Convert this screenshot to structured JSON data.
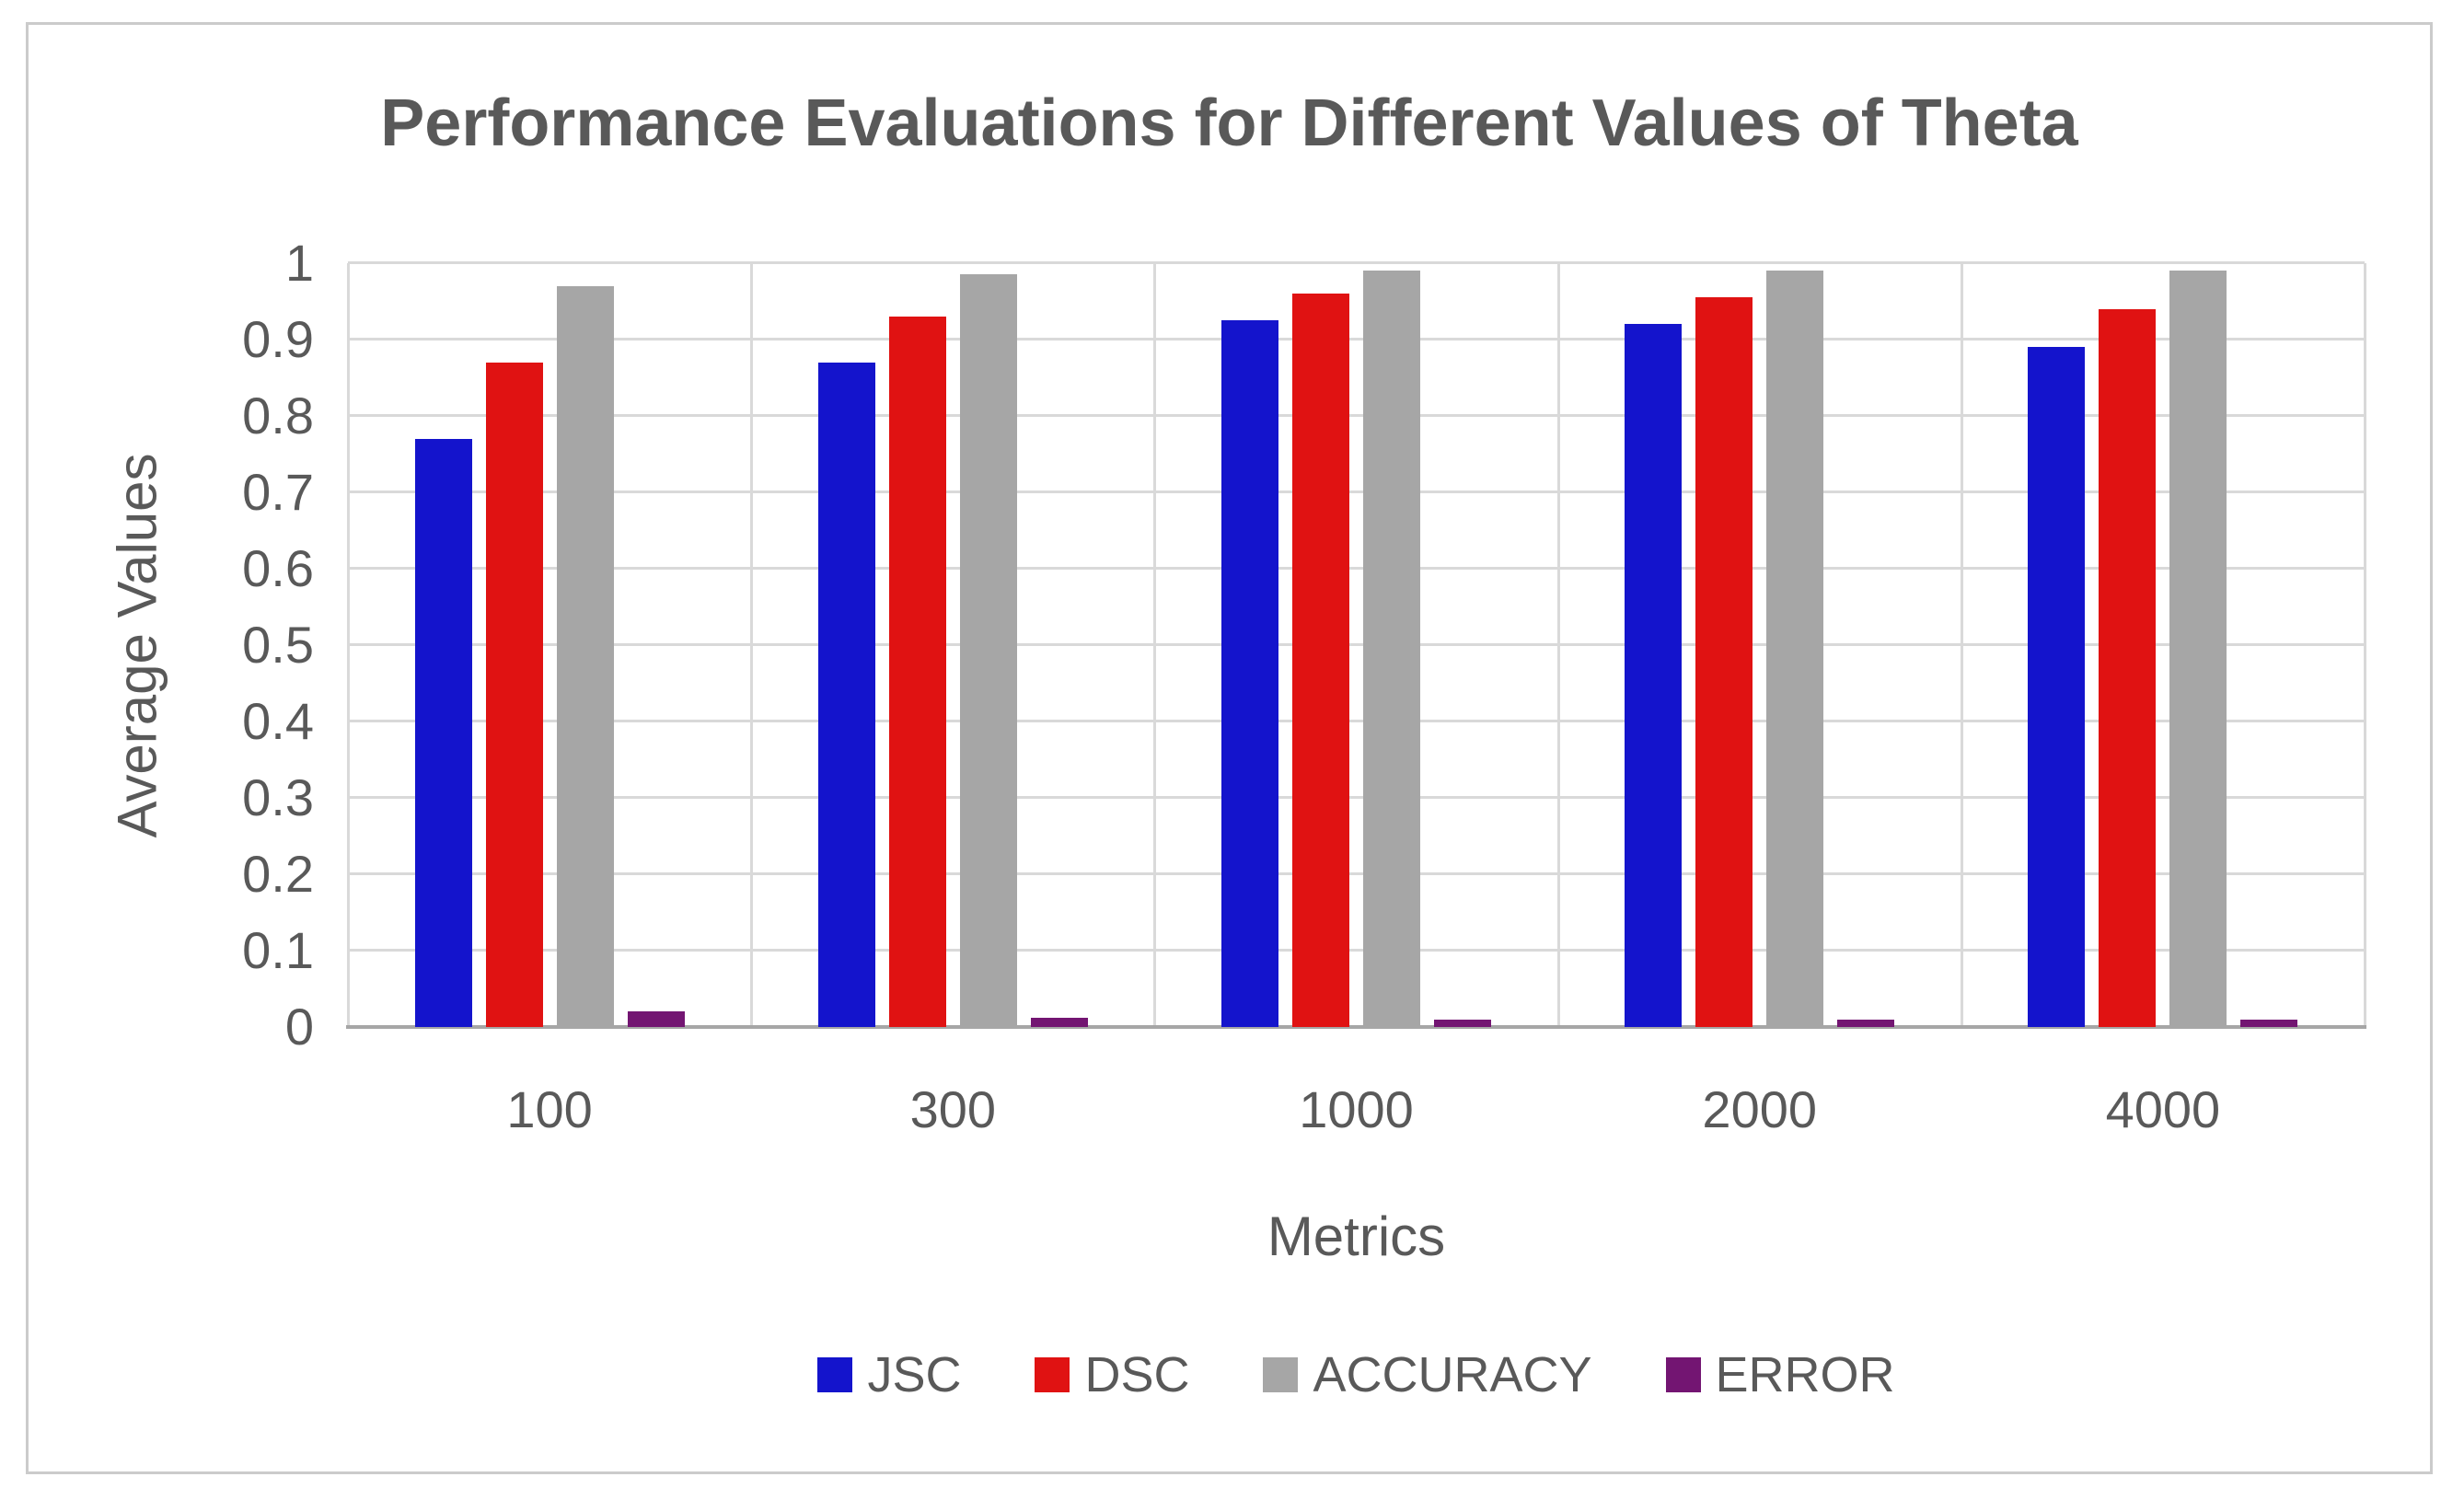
{
  "chart_data": {
    "type": "bar",
    "title": "Performance Evaluations for Different Values of Theta",
    "xlabel": "Metrics",
    "ylabel": "Average Values",
    "categories": [
      "100",
      "300",
      "1000",
      "2000",
      "4000"
    ],
    "series": [
      {
        "name": "JSC",
        "color": "#1414cc",
        "values": [
          0.77,
          0.87,
          0.925,
          0.92,
          0.89
        ]
      },
      {
        "name": "DSC",
        "color": "#e01212",
        "values": [
          0.87,
          0.93,
          0.96,
          0.955,
          0.94
        ]
      },
      {
        "name": "ACCURACY",
        "color": "#a6a6a6",
        "values": [
          0.97,
          0.985,
          0.99,
          0.99,
          0.99
        ]
      },
      {
        "name": "ERROR",
        "color": "#731572",
        "values": [
          0.02,
          0.012,
          0.01,
          0.01,
          0.01
        ]
      }
    ],
    "ylim": [
      0,
      1
    ],
    "yticks": [
      0,
      0.1,
      0.2,
      0.3,
      0.4,
      0.5,
      0.6,
      0.7,
      0.8,
      0.9,
      1
    ],
    "ytick_labels": [
      "0",
      "0.1",
      "0.2",
      "0.3",
      "0.4",
      "0.5",
      "0.6",
      "0.7",
      "0.8",
      "0.9",
      "1"
    ],
    "grid": true,
    "legend_position": "bottom",
    "colors": {
      "text": "#595959",
      "gridline": "#d9d9d9",
      "axis_line": "#a6a6a6",
      "border": "#cbcbcb"
    }
  }
}
